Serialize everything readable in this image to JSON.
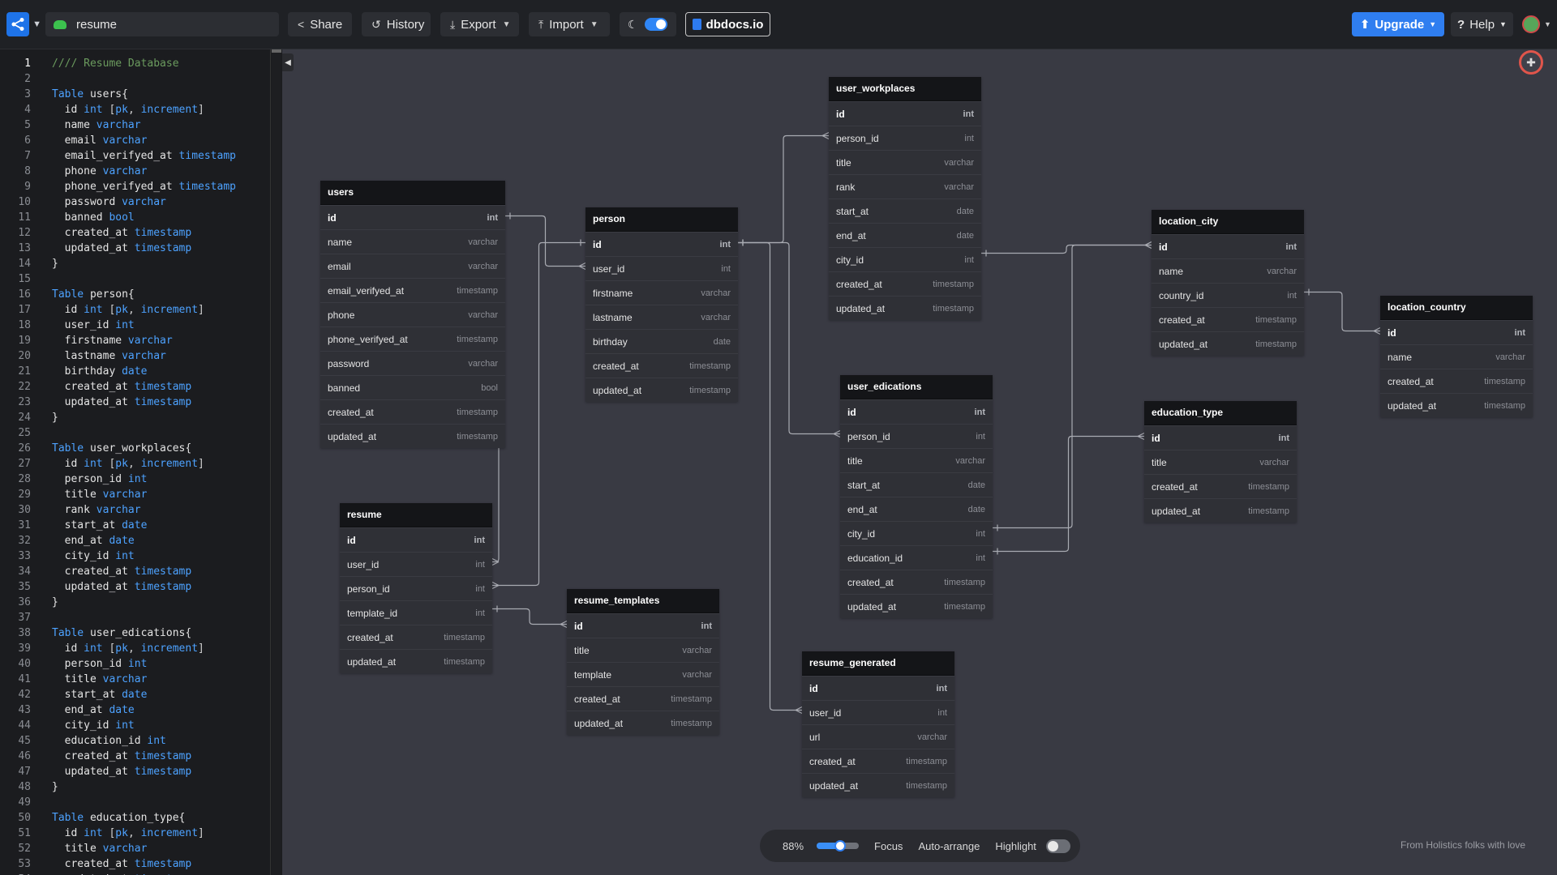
{
  "topbar": {
    "doc_name": "resume",
    "share": "Share",
    "history": "History",
    "export": "Export",
    "import": "Import",
    "dbdocs": "dbdocs.io",
    "upgrade": "Upgrade",
    "help": "Help",
    "theme_toggle_on": true
  },
  "editor": {
    "current_line": 1,
    "lines": [
      [
        {
          "c": "c",
          "t": "//// Resume Database"
        }
      ],
      [],
      [
        {
          "c": "k",
          "t": "Table "
        },
        {
          "c": "t",
          "t": "users{"
        }
      ],
      [
        {
          "c": "t",
          "t": "  id "
        },
        {
          "c": "k",
          "t": "int"
        },
        {
          "c": "p",
          "t": " ["
        },
        {
          "c": "k",
          "t": "pk"
        },
        {
          "c": "p",
          "t": ", "
        },
        {
          "c": "k",
          "t": "increment"
        },
        {
          "c": "p",
          "t": "]"
        }
      ],
      [
        {
          "c": "t",
          "t": "  name "
        },
        {
          "c": "k",
          "t": "varchar"
        }
      ],
      [
        {
          "c": "t",
          "t": "  email "
        },
        {
          "c": "k",
          "t": "varchar"
        }
      ],
      [
        {
          "c": "t",
          "t": "  email_verifyed_at "
        },
        {
          "c": "k",
          "t": "timestamp"
        }
      ],
      [
        {
          "c": "t",
          "t": "  phone "
        },
        {
          "c": "k",
          "t": "varchar"
        }
      ],
      [
        {
          "c": "t",
          "t": "  phone_verifyed_at "
        },
        {
          "c": "k",
          "t": "timestamp"
        }
      ],
      [
        {
          "c": "t",
          "t": "  password "
        },
        {
          "c": "k",
          "t": "varchar"
        }
      ],
      [
        {
          "c": "t",
          "t": "  banned "
        },
        {
          "c": "k",
          "t": "bool"
        }
      ],
      [
        {
          "c": "t",
          "t": "  created_at "
        },
        {
          "c": "k",
          "t": "timestamp"
        }
      ],
      [
        {
          "c": "t",
          "t": "  updated_at "
        },
        {
          "c": "k",
          "t": "timestamp"
        }
      ],
      [
        {
          "c": "t",
          "t": "}"
        }
      ],
      [],
      [
        {
          "c": "k",
          "t": "Table "
        },
        {
          "c": "t",
          "t": "person{"
        }
      ],
      [
        {
          "c": "t",
          "t": "  id "
        },
        {
          "c": "k",
          "t": "int"
        },
        {
          "c": "p",
          "t": " ["
        },
        {
          "c": "k",
          "t": "pk"
        },
        {
          "c": "p",
          "t": ", "
        },
        {
          "c": "k",
          "t": "increment"
        },
        {
          "c": "p",
          "t": "]"
        }
      ],
      [
        {
          "c": "t",
          "t": "  user_id "
        },
        {
          "c": "k",
          "t": "int"
        }
      ],
      [
        {
          "c": "t",
          "t": "  firstname "
        },
        {
          "c": "k",
          "t": "varchar"
        }
      ],
      [
        {
          "c": "t",
          "t": "  lastname "
        },
        {
          "c": "k",
          "t": "varchar"
        }
      ],
      [
        {
          "c": "t",
          "t": "  birthday "
        },
        {
          "c": "k",
          "t": "date"
        }
      ],
      [
        {
          "c": "t",
          "t": "  created_at "
        },
        {
          "c": "k",
          "t": "timestamp"
        }
      ],
      [
        {
          "c": "t",
          "t": "  updated_at "
        },
        {
          "c": "k",
          "t": "timestamp"
        }
      ],
      [
        {
          "c": "t",
          "t": "}"
        }
      ],
      [],
      [
        {
          "c": "k",
          "t": "Table "
        },
        {
          "c": "t",
          "t": "user_workplaces{"
        }
      ],
      [
        {
          "c": "t",
          "t": "  id "
        },
        {
          "c": "k",
          "t": "int"
        },
        {
          "c": "p",
          "t": " ["
        },
        {
          "c": "k",
          "t": "pk"
        },
        {
          "c": "p",
          "t": ", "
        },
        {
          "c": "k",
          "t": "increment"
        },
        {
          "c": "p",
          "t": "]"
        }
      ],
      [
        {
          "c": "t",
          "t": "  person_id "
        },
        {
          "c": "k",
          "t": "int"
        }
      ],
      [
        {
          "c": "t",
          "t": "  title "
        },
        {
          "c": "k",
          "t": "varchar"
        }
      ],
      [
        {
          "c": "t",
          "t": "  rank "
        },
        {
          "c": "k",
          "t": "varchar"
        }
      ],
      [
        {
          "c": "t",
          "t": "  start_at "
        },
        {
          "c": "k",
          "t": "date"
        }
      ],
      [
        {
          "c": "t",
          "t": "  end_at "
        },
        {
          "c": "k",
          "t": "date"
        }
      ],
      [
        {
          "c": "t",
          "t": "  city_id "
        },
        {
          "c": "k",
          "t": "int"
        }
      ],
      [
        {
          "c": "t",
          "t": "  created_at "
        },
        {
          "c": "k",
          "t": "timestamp"
        }
      ],
      [
        {
          "c": "t",
          "t": "  updated_at "
        },
        {
          "c": "k",
          "t": "timestamp"
        }
      ],
      [
        {
          "c": "t",
          "t": "}"
        }
      ],
      [],
      [
        {
          "c": "k",
          "t": "Table "
        },
        {
          "c": "t",
          "t": "user_edications{"
        }
      ],
      [
        {
          "c": "t",
          "t": "  id "
        },
        {
          "c": "k",
          "t": "int"
        },
        {
          "c": "p",
          "t": " ["
        },
        {
          "c": "k",
          "t": "pk"
        },
        {
          "c": "p",
          "t": ", "
        },
        {
          "c": "k",
          "t": "increment"
        },
        {
          "c": "p",
          "t": "]"
        }
      ],
      [
        {
          "c": "t",
          "t": "  person_id "
        },
        {
          "c": "k",
          "t": "int"
        }
      ],
      [
        {
          "c": "t",
          "t": "  title "
        },
        {
          "c": "k",
          "t": "varchar"
        }
      ],
      [
        {
          "c": "t",
          "t": "  start_at "
        },
        {
          "c": "k",
          "t": "date"
        }
      ],
      [
        {
          "c": "t",
          "t": "  end_at "
        },
        {
          "c": "k",
          "t": "date"
        }
      ],
      [
        {
          "c": "t",
          "t": "  city_id "
        },
        {
          "c": "k",
          "t": "int"
        }
      ],
      [
        {
          "c": "t",
          "t": "  education_id "
        },
        {
          "c": "k",
          "t": "int"
        }
      ],
      [
        {
          "c": "t",
          "t": "  created_at "
        },
        {
          "c": "k",
          "t": "timestamp"
        }
      ],
      [
        {
          "c": "t",
          "t": "  updated_at "
        },
        {
          "c": "k",
          "t": "timestamp"
        }
      ],
      [
        {
          "c": "t",
          "t": "}"
        }
      ],
      [],
      [
        {
          "c": "k",
          "t": "Table "
        },
        {
          "c": "t",
          "t": "education_type{"
        }
      ],
      [
        {
          "c": "t",
          "t": "  id "
        },
        {
          "c": "k",
          "t": "int"
        },
        {
          "c": "p",
          "t": " ["
        },
        {
          "c": "k",
          "t": "pk"
        },
        {
          "c": "p",
          "t": ", "
        },
        {
          "c": "k",
          "t": "increment"
        },
        {
          "c": "p",
          "t": "]"
        }
      ],
      [
        {
          "c": "t",
          "t": "  title "
        },
        {
          "c": "k",
          "t": "varchar"
        }
      ],
      [
        {
          "c": "t",
          "t": "  created_at "
        },
        {
          "c": "k",
          "t": "timestamp"
        }
      ],
      [
        {
          "c": "t",
          "t": "  updated_at "
        },
        {
          "c": "k",
          "t": "timestamp"
        }
      ]
    ]
  },
  "tables": [
    {
      "key": "users",
      "name": "users",
      "rows": [
        [
          "id",
          "int"
        ],
        [
          "name",
          "varchar"
        ],
        [
          "email",
          "varchar"
        ],
        [
          "email_verifyed_at",
          "timestamp"
        ],
        [
          "phone",
          "varchar"
        ],
        [
          "phone_verifyed_at",
          "timestamp"
        ],
        [
          "password",
          "varchar"
        ],
        [
          "banned",
          "bool"
        ],
        [
          "created_at",
          "timestamp"
        ],
        [
          "updated_at",
          "timestamp"
        ]
      ]
    },
    {
      "key": "person",
      "name": "person",
      "rows": [
        [
          "id",
          "int"
        ],
        [
          "user_id",
          "int"
        ],
        [
          "firstname",
          "varchar"
        ],
        [
          "lastname",
          "varchar"
        ],
        [
          "birthday",
          "date"
        ],
        [
          "created_at",
          "timestamp"
        ],
        [
          "updated_at",
          "timestamp"
        ]
      ]
    },
    {
      "key": "user_workplaces",
      "name": "user_workplaces",
      "rows": [
        [
          "id",
          "int"
        ],
        [
          "person_id",
          "int"
        ],
        [
          "title",
          "varchar"
        ],
        [
          "rank",
          "varchar"
        ],
        [
          "start_at",
          "date"
        ],
        [
          "end_at",
          "date"
        ],
        [
          "city_id",
          "int"
        ],
        [
          "created_at",
          "timestamp"
        ],
        [
          "updated_at",
          "timestamp"
        ]
      ]
    },
    {
      "key": "location_city",
      "name": "location_city",
      "rows": [
        [
          "id",
          "int"
        ],
        [
          "name",
          "varchar"
        ],
        [
          "country_id",
          "int"
        ],
        [
          "created_at",
          "timestamp"
        ],
        [
          "updated_at",
          "timestamp"
        ]
      ]
    },
    {
      "key": "location_country",
      "name": "location_country",
      "rows": [
        [
          "id",
          "int"
        ],
        [
          "name",
          "varchar"
        ],
        [
          "created_at",
          "timestamp"
        ],
        [
          "updated_at",
          "timestamp"
        ]
      ]
    },
    {
      "key": "user_edications",
      "name": "user_edications",
      "rows": [
        [
          "id",
          "int"
        ],
        [
          "person_id",
          "int"
        ],
        [
          "title",
          "varchar"
        ],
        [
          "start_at",
          "date"
        ],
        [
          "end_at",
          "date"
        ],
        [
          "city_id",
          "int"
        ],
        [
          "education_id",
          "int"
        ],
        [
          "created_at",
          "timestamp"
        ],
        [
          "updated_at",
          "timestamp"
        ]
      ]
    },
    {
      "key": "education_type",
      "name": "education_type",
      "rows": [
        [
          "id",
          "int"
        ],
        [
          "title",
          "varchar"
        ],
        [
          "created_at",
          "timestamp"
        ],
        [
          "updated_at",
          "timestamp"
        ]
      ]
    },
    {
      "key": "resume",
      "name": "resume",
      "rows": [
        [
          "id",
          "int"
        ],
        [
          "user_id",
          "int"
        ],
        [
          "person_id",
          "int"
        ],
        [
          "template_id",
          "int"
        ],
        [
          "created_at",
          "timestamp"
        ],
        [
          "updated_at",
          "timestamp"
        ]
      ]
    },
    {
      "key": "resume_templates",
      "name": "resume_templates",
      "rows": [
        [
          "id",
          "int"
        ],
        [
          "title",
          "varchar"
        ],
        [
          "template",
          "varchar"
        ],
        [
          "created_at",
          "timestamp"
        ],
        [
          "updated_at",
          "timestamp"
        ]
      ]
    },
    {
      "key": "resume_generated",
      "name": "resume_generated",
      "rows": [
        [
          "id",
          "int"
        ],
        [
          "user_id",
          "int"
        ],
        [
          "url",
          "varchar"
        ],
        [
          "created_at",
          "timestamp"
        ],
        [
          "updated_at",
          "timestamp"
        ]
      ]
    }
  ],
  "relations": [
    [
      "users.id",
      "person.user_id"
    ],
    [
      "users.id",
      "resume.user_id"
    ],
    [
      "person.id",
      "resume.person_id"
    ],
    [
      "person.id",
      "user_workplaces.person_id"
    ],
    [
      "person.id",
      "user_edications.person_id"
    ],
    [
      "person.id",
      "resume_generated.user_id"
    ],
    [
      "user_workplaces.city_id",
      "location_city.id"
    ],
    [
      "user_edications.city_id",
      "location_city.id"
    ],
    [
      "user_edications.education_id",
      "education_type.id"
    ],
    [
      "location_city.country_id",
      "location_country.id"
    ],
    [
      "resume.template_id",
      "resume_templates.id"
    ]
  ],
  "bottom": {
    "zoom": "88%",
    "zoom_level": 0.55,
    "focus": "Focus",
    "auto_arrange": "Auto-arrange",
    "highlight": "Highlight",
    "highlight_on": false
  },
  "footer_note": "From Holistics folks with love",
  "colors": {
    "accent": "#2f7ef0",
    "canvas": "#393a43",
    "table_header": "#141518",
    "keyword": "#4da2ff",
    "comment": "#6b9b5e"
  }
}
